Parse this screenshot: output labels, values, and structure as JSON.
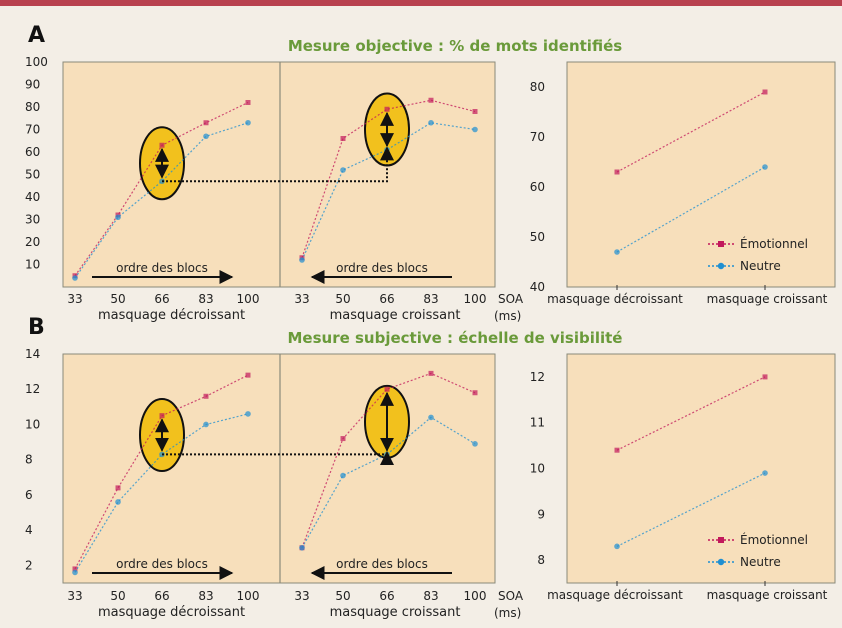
{
  "panels": [
    {
      "letter": "A",
      "title": "Mesure objective : % de mots identifiés",
      "left_xlabel": "masquage décroissant",
      "mid_xlabel": "masquage croissant",
      "soa_label": "SOA",
      "soa_unit": "(ms)",
      "block_order_label": "ordre des blocs",
      "right_xticks": [
        "masquage décroissant",
        "masquage croissant"
      ]
    },
    {
      "letter": "B",
      "title": "Mesure subjective : échelle de visibilité",
      "left_xlabel": "masquage décroissant",
      "mid_xlabel": "masquage croissant",
      "soa_label": "SOA",
      "soa_unit": "(ms)",
      "block_order_label": "ordre des blocs",
      "right_xticks": [
        "masquage décroissant",
        "masquage croissant"
      ]
    }
  ],
  "legend": {
    "emotional": "Émotionnel",
    "neutral": "Neutre"
  },
  "colors": {
    "emotional": "#c2185b",
    "neutral": "#1f8fd1",
    "plot_bg": "#f7dfbb",
    "plot_border": "#8a8a7a",
    "highlight": "#f2c11d",
    "accent_bar": "#b8414f"
  },
  "chart_data": [
    {
      "type": "line",
      "panel": "A-left",
      "x": [
        33,
        50,
        66,
        83,
        100
      ],
      "ylim": [
        0,
        100
      ],
      "yticks": [
        10,
        20,
        30,
        40,
        50,
        60,
        70,
        80,
        90,
        100
      ],
      "series": [
        {
          "name": "Émotionnel",
          "values": [
            5,
            32,
            63,
            73,
            82
          ]
        },
        {
          "name": "Neutre",
          "values": [
            4,
            31,
            47,
            67,
            73
          ]
        }
      ]
    },
    {
      "type": "line",
      "panel": "A-middle",
      "x": [
        33,
        50,
        66,
        83,
        100
      ],
      "ylim": [
        0,
        100
      ],
      "series": [
        {
          "name": "Émotionnel",
          "values": [
            13,
            66,
            79,
            83,
            78
          ]
        },
        {
          "name": "Neutre",
          "values": [
            12,
            52,
            61,
            73,
            70
          ]
        }
      ]
    },
    {
      "type": "line",
      "panel": "A-right",
      "categories": [
        "masquage décroissant",
        "masquage croissant"
      ],
      "ylim": [
        40,
        85
      ],
      "yticks": [
        40,
        50,
        60,
        70,
        80
      ],
      "series": [
        {
          "name": "Émotionnel",
          "values": [
            63,
            79
          ]
        },
        {
          "name": "Neutre",
          "values": [
            47,
            64
          ]
        }
      ]
    },
    {
      "type": "line",
      "panel": "B-left",
      "x": [
        33,
        50,
        66,
        83,
        100
      ],
      "ylim": [
        1,
        14
      ],
      "yticks": [
        2,
        4,
        6,
        8,
        10,
        12,
        14
      ],
      "series": [
        {
          "name": "Émotionnel",
          "values": [
            1.8,
            6.4,
            10.5,
            11.6,
            12.8
          ]
        },
        {
          "name": "Neutre",
          "values": [
            1.6,
            5.6,
            8.3,
            10,
            10.6
          ]
        }
      ]
    },
    {
      "type": "line",
      "panel": "B-middle",
      "x": [
        33,
        50,
        66,
        83,
        100
      ],
      "ylim": [
        1,
        14
      ],
      "series": [
        {
          "name": "Émotionnel",
          "values": [
            3,
            9.2,
            12,
            12.9,
            11.8
          ]
        },
        {
          "name": "Neutre",
          "values": [
            3,
            7.1,
            8.3,
            10.4,
            8.9
          ]
        }
      ]
    },
    {
      "type": "line",
      "panel": "B-right",
      "categories": [
        "masquage décroissant",
        "masquage croissant"
      ],
      "ylim": [
        7.5,
        12.5
      ],
      "yticks": [
        8,
        9,
        10,
        11,
        12
      ],
      "series": [
        {
          "name": "Émotionnel",
          "values": [
            10.4,
            12
          ]
        },
        {
          "name": "Neutre",
          "values": [
            8.3,
            9.9
          ]
        }
      ]
    }
  ]
}
